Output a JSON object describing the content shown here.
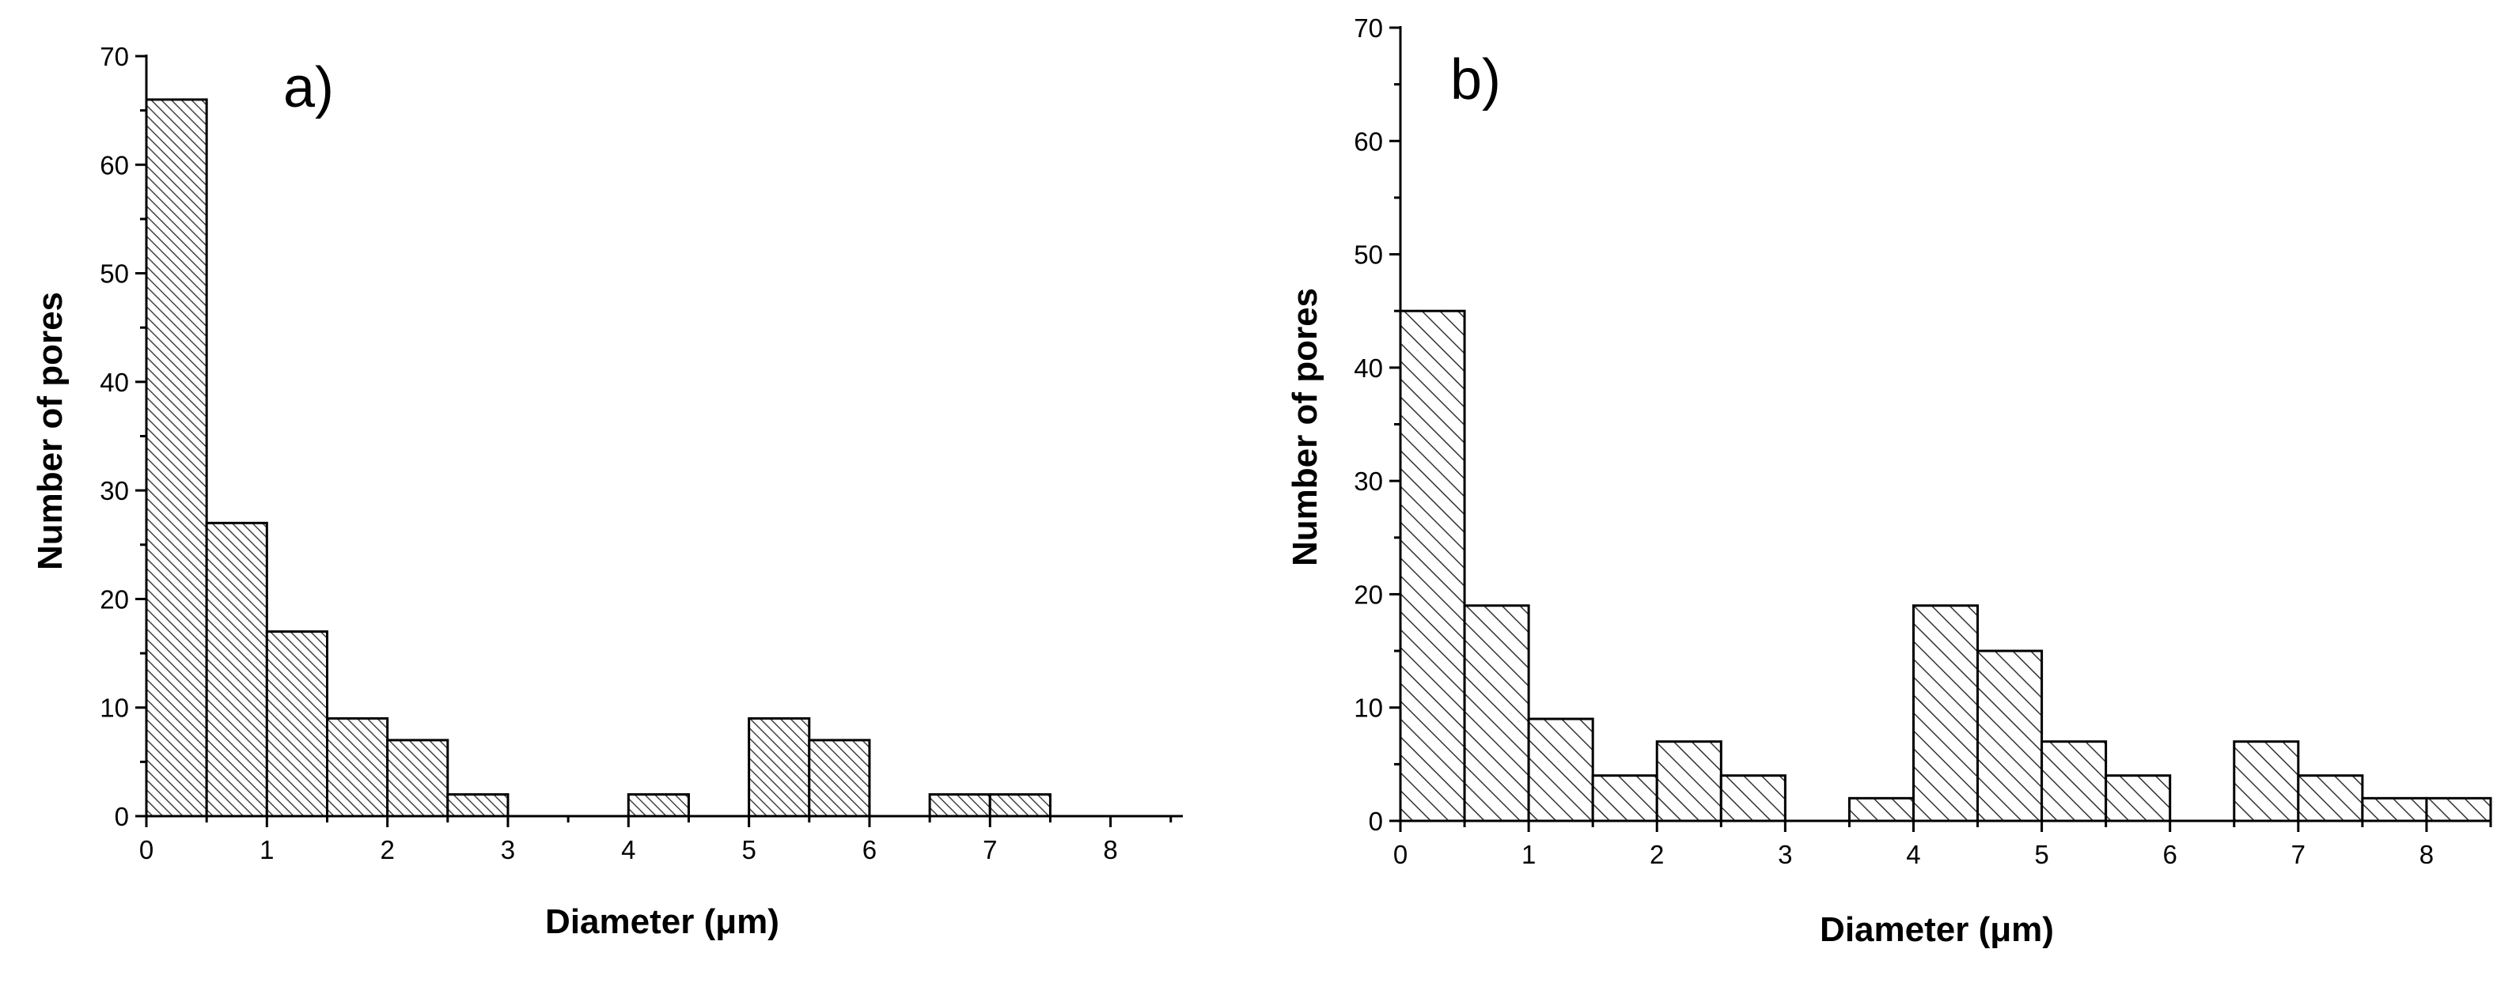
{
  "chart_data": [
    {
      "type": "bar",
      "panel_label": "a)",
      "xlabel": "Diameter (μm)",
      "ylabel": "Number of pores",
      "xlim": [
        0,
        8.6
      ],
      "ylim": [
        0,
        70
      ],
      "x_ticks": [
        0,
        1,
        2,
        3,
        4,
        5,
        6,
        7,
        8
      ],
      "y_ticks": [
        0,
        10,
        20,
        30,
        40,
        50,
        60,
        70
      ],
      "bin_width": 0.5,
      "bin_starts": [
        0,
        0.5,
        1,
        1.5,
        2,
        2.5,
        4,
        5,
        5.5,
        6.5,
        7
      ],
      "values": [
        66,
        27,
        17,
        9,
        7,
        2,
        2,
        9,
        7,
        2,
        2
      ],
      "hatch": "dense diagonal",
      "grid": false
    },
    {
      "type": "bar",
      "panel_label": "b)",
      "xlabel": "Diameter (μm)",
      "ylabel": "Number of pores",
      "xlim": [
        0,
        8.5
      ],
      "ylim": [
        0,
        70
      ],
      "x_ticks": [
        0,
        1,
        2,
        3,
        4,
        5,
        6,
        7,
        8
      ],
      "y_ticks": [
        0,
        10,
        20,
        30,
        40,
        50,
        60,
        70
      ],
      "bin_width": 0.5,
      "bin_starts": [
        0,
        0.5,
        1,
        1.5,
        2,
        2.5,
        3.5,
        4,
        4.5,
        5,
        5.5,
        6.5,
        7,
        7.5,
        8
      ],
      "values": [
        45,
        19,
        9,
        4,
        7,
        4,
        2,
        19,
        15,
        7,
        4,
        7,
        4,
        2,
        2
      ],
      "hatch": "sparse diagonal",
      "grid": false
    }
  ]
}
